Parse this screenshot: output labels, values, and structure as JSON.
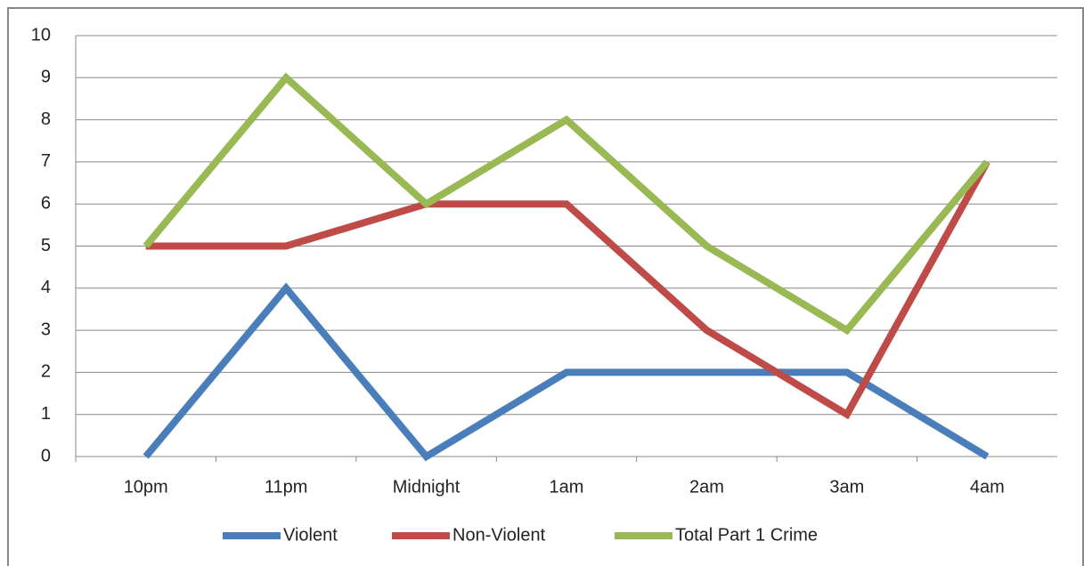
{
  "chart_data": {
    "type": "line",
    "categories": [
      "10pm",
      "11pm",
      "Midnight",
      "1am",
      "2am",
      "3am",
      "4am"
    ],
    "series": [
      {
        "name": "Violent",
        "color": "#4a7ebb",
        "values": [
          0,
          4,
          0,
          2,
          2,
          2,
          0
        ]
      },
      {
        "name": "Non-Violent",
        "color": "#be4b48",
        "values": [
          5,
          5,
          6,
          6,
          3,
          1,
          7
        ]
      },
      {
        "name": "Total Part 1 Crime",
        "color": "#98b954",
        "values": [
          5,
          9,
          6,
          8,
          5,
          3,
          7
        ]
      }
    ],
    "ylim": [
      0,
      10
    ],
    "yticks": [
      0,
      1,
      2,
      3,
      4,
      5,
      6,
      7,
      8,
      9,
      10
    ],
    "grid": true,
    "legend": "bottom"
  }
}
